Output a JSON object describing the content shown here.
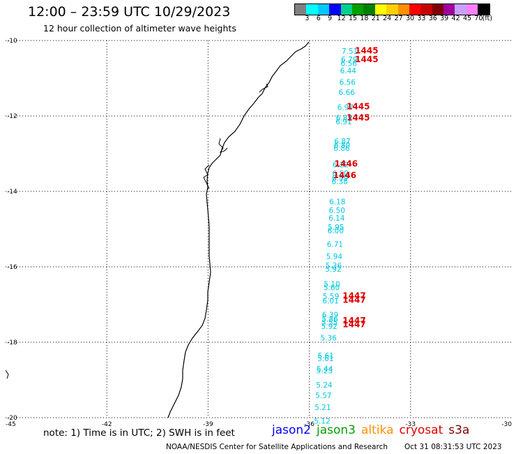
{
  "header": {
    "title": "12:00 – 23:59 UTC 10/29/2023",
    "subtitle": "12 hour collection of altimeter wave heights"
  },
  "legend": {
    "unit": "(ft)",
    "colors": [
      "#808080",
      "#00ffff",
      "#00c8ff",
      "#0000ff",
      "#00d08c",
      "#00a000",
      "#008000",
      "#ffff00",
      "#ffd000",
      "#ff9000",
      "#ff0000",
      "#c80000",
      "#800000",
      "#a000a0",
      "#c8a0ff",
      "#ff80ff",
      "#000000"
    ],
    "labels": [
      "3",
      "6",
      "9",
      "12",
      "15",
      "18",
      "21",
      "24",
      "27",
      "30",
      "33",
      "36",
      "39",
      "42",
      "45",
      "70"
    ]
  },
  "map": {
    "lon_labels": [
      "-45",
      "-42",
      "-39",
      "-36",
      "-33",
      "-30"
    ],
    "lat_labels": [
      "-10",
      "-12",
      "-14",
      "-16",
      "-18",
      "-20"
    ],
    "grid": "dotted",
    "coastline_color": "#000000"
  },
  "observations": [
    {
      "lon": -34.8,
      "lat": -10.28,
      "swh": "7.51"
    },
    {
      "lon": -34.82,
      "lat": -10.5,
      "swh": "6.79"
    },
    {
      "lon": -34.83,
      "lat": -10.6,
      "swh": "6.56"
    },
    {
      "lon": -34.85,
      "lat": -10.8,
      "swh": "6.44"
    },
    {
      "lon": -34.87,
      "lat": -11.1,
      "swh": "6.56"
    },
    {
      "lon": -34.89,
      "lat": -11.37,
      "swh": "6.66"
    },
    {
      "lon": -34.93,
      "lat": -11.77,
      "swh": "6.97"
    },
    {
      "lon": -34.97,
      "lat": -12.05,
      "swh": "6.89"
    },
    {
      "lon": -34.98,
      "lat": -12.15,
      "swh": "6.91"
    },
    {
      "lon": -35.02,
      "lat": -12.67,
      "swh": "6.87"
    },
    {
      "lon": -35.03,
      "lat": -12.77,
      "swh": "6.80"
    },
    {
      "lon": -35.04,
      "lat": -12.85,
      "swh": "6.86"
    },
    {
      "lon": -35.07,
      "lat": -13.29,
      "swh": "6.22"
    },
    {
      "lon": -35.08,
      "lat": -13.52,
      "swh": "6.50"
    },
    {
      "lon": -35.09,
      "lat": -13.64,
      "swh": "6.59"
    },
    {
      "lon": -35.1,
      "lat": -13.73,
      "swh": "6.38"
    },
    {
      "lon": -35.17,
      "lat": -14.27,
      "swh": "6.18"
    },
    {
      "lon": -35.18,
      "lat": -14.5,
      "swh": "6.50"
    },
    {
      "lon": -35.19,
      "lat": -14.7,
      "swh": "6.14"
    },
    {
      "lon": -35.21,
      "lat": -14.94,
      "swh": "5.95"
    },
    {
      "lon": -35.22,
      "lat": -15.04,
      "swh": "6.00"
    },
    {
      "lon": -35.24,
      "lat": -15.4,
      "swh": "6.71"
    },
    {
      "lon": -35.26,
      "lat": -15.72,
      "swh": "5.94"
    },
    {
      "lon": -35.28,
      "lat": -15.96,
      "swh": "5.36"
    },
    {
      "lon": -35.29,
      "lat": -16.06,
      "swh": "5.92"
    },
    {
      "lon": -35.33,
      "lat": -16.45,
      "swh": "5.10"
    },
    {
      "lon": -35.34,
      "lat": -16.55,
      "swh": "5.60"
    },
    {
      "lon": -35.36,
      "lat": -16.78,
      "swh": "5.59"
    },
    {
      "lon": -35.37,
      "lat": -16.9,
      "swh": "6.01"
    },
    {
      "lon": -35.38,
      "lat": -17.27,
      "swh": "6.39"
    },
    {
      "lon": -35.39,
      "lat": -17.38,
      "swh": "5.86"
    },
    {
      "lon": -35.4,
      "lat": -17.47,
      "swh": "5.55"
    },
    {
      "lon": -35.41,
      "lat": -17.57,
      "swh": "5.92"
    },
    {
      "lon": -35.43,
      "lat": -17.88,
      "swh": "5.36"
    },
    {
      "lon": -35.51,
      "lat": -18.35,
      "swh": "5.61"
    },
    {
      "lon": -35.52,
      "lat": -18.43,
      "swh": "5.61"
    },
    {
      "lon": -35.54,
      "lat": -18.7,
      "swh": "5.44"
    },
    {
      "lon": -35.55,
      "lat": -18.75,
      "swh": "5.23"
    },
    {
      "lon": -35.56,
      "lat": -19.13,
      "swh": "5.24"
    },
    {
      "lon": -35.58,
      "lat": -19.41,
      "swh": "5.57"
    },
    {
      "lon": -35.6,
      "lat": -19.72,
      "swh": "5.21"
    },
    {
      "lon": -35.62,
      "lat": -20.08,
      "swh": "5.12"
    }
  ],
  "pass_labels": [
    {
      "lon": -34.3,
      "lat": -10.27,
      "text": "1445"
    },
    {
      "lon": -34.3,
      "lat": -10.5,
      "text": "1445"
    },
    {
      "lon": -34.55,
      "lat": -11.75,
      "text": "1445"
    },
    {
      "lon": -34.55,
      "lat": -12.05,
      "text": "1445"
    },
    {
      "lon": -34.91,
      "lat": -13.27,
      "text": "1446"
    },
    {
      "lon": -34.95,
      "lat": -13.57,
      "text": "1446"
    },
    {
      "lon": -34.67,
      "lat": -16.77,
      "text": "1447"
    },
    {
      "lon": -34.67,
      "lat": -16.88,
      "text": "1447"
    },
    {
      "lon": -34.67,
      "lat": -17.43,
      "text": "1447"
    },
    {
      "lon": -34.67,
      "lat": -17.53,
      "text": "1447"
    }
  ],
  "footer": {
    "note": "note: 1) Time is in UTC; 2) SWH is in feet",
    "satellites": [
      {
        "name": "jason2",
        "color": "#0000ff"
      },
      {
        "name": "jason3",
        "color": "#00a000"
      },
      {
        "name": "altika",
        "color": "#ff9000"
      },
      {
        "name": "cryosat",
        "color": "#e00000"
      },
      {
        "name": "s3a",
        "color": "#800000"
      }
    ],
    "credit": "NOAA/NESDIS Center for Satellite Applications and Research",
    "timestamp": "Oct 31 08:31:53 UTC 2023"
  }
}
